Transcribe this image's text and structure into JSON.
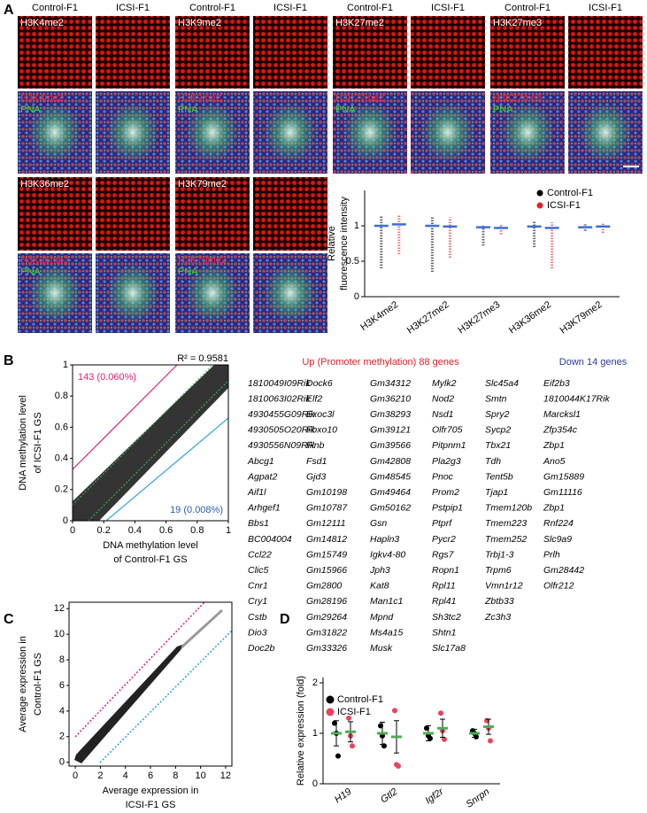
{
  "panels": {
    "a": "A",
    "b": "B",
    "c": "C",
    "d": "D"
  },
  "micrographs": {
    "columns": [
      "Control-F1",
      "ICSI-F1"
    ],
    "stains": [
      "H3K4me2",
      "H3K9me2",
      "H3K27me2",
      "H3K27me3",
      "H3K36me2",
      "H3K79me2"
    ],
    "counterstain": "PNA"
  },
  "gene_lists": {
    "up_title": "Up (Promoter methylation) 88 genes",
    "up": [
      [
        "1810049I09Rik",
        "1810063I02Rik",
        "4930455G09Rik",
        "4930505O20Rik",
        "4930556N09Rik",
        "Abcg1",
        "Agpat2",
        "Aif1l",
        "Arhgef1",
        "Bbs1",
        "BC004004",
        "Ccl22",
        "Clic5",
        "Cnr1",
        "Cry1",
        "Cstb",
        "Dio3",
        "Doc2b"
      ],
      [
        "Dock6",
        "Elf2",
        "Exoc3l",
        "Fbxo10",
        "Flnb",
        "Fsd1",
        "Gjd3",
        "Gm10198",
        "Gm10787",
        "Gm12111",
        "Gm14812",
        "Gm15749",
        "Gm15966",
        "Gm2800",
        "Gm28196",
        "Gm29264",
        "Gm31822",
        "Gm33326"
      ],
      [
        "Gm34312",
        "Gm36210",
        "Gm38293",
        "Gm39121",
        "Gm39566",
        "Gm42808",
        "Gm48545",
        "Gm49464",
        "Gm50162",
        "Gsn",
        "Hapln3",
        "Igkv4-80",
        "Jph3",
        "Kat8",
        "Man1c1",
        "Mpnd",
        "Ms4a15",
        "Musk"
      ],
      [
        "Mylk2",
        "Nod2",
        "Nsd1",
        "Olfr705",
        "Pitpnm1",
        "Pla2g3",
        "Pnoc",
        "Prom2",
        "Pstpip1",
        "Ptprf",
        "Pycr2",
        "Rgs7",
        "Ropn1",
        "Rpl11",
        "Rpl41",
        "Sh3tc2",
        "Shtn1",
        "Slc17a8"
      ],
      [
        "Slc45a4",
        "Smtn",
        "Spry2",
        "Sycp2",
        "Tbx21",
        "Tdh",
        "Tent5b",
        "Tjap1",
        "Tmem120b",
        "Tmem223",
        "Tmem252",
        "Trbj1-3",
        "Trpm6",
        "Vmn1r12",
        "Zbtb33",
        "Zc3h3"
      ]
    ],
    "down_title": "Down 14 genes",
    "down": [
      "Eif2b3",
      "1810044K17Rik",
      "Marcksl1",
      "Zfp354c",
      "Zbp1",
      "Ano5",
      "Gm15889",
      "Gm11116",
      "Zbp1",
      "Rnf224",
      "Slc9a9",
      "Prlh",
      "Gm28442",
      "Olfr212"
    ]
  },
  "chart_data": [
    {
      "type": "dot",
      "y_label": [
        "Relative",
        "fluorescence intensity"
      ],
      "categories": [
        "H3K4me2",
        "H3K27me2",
        "H3K27me3",
        "H3K36me2",
        "H3K79me2"
      ],
      "series": [
        {
          "name": "Control-F1",
          "color": "#000000",
          "values": [
            1.0,
            1.0,
            0.98,
            0.99,
            0.98
          ],
          "min": [
            0.4,
            0.35,
            0.72,
            0.7,
            0.93
          ],
          "max": [
            1.15,
            1.12,
            1.02,
            1.06,
            1.02
          ]
        },
        {
          "name": "ICSI-F1",
          "color": "#e8202a",
          "values": [
            1.02,
            0.99,
            0.97,
            0.97,
            0.99
          ],
          "min": [
            0.6,
            0.55,
            0.88,
            0.4,
            0.9
          ],
          "max": [
            1.15,
            1.12,
            1.02,
            1.05,
            1.03
          ]
        }
      ],
      "mean_color": "#3b6fd8",
      "ylim": [
        0,
        1.5
      ],
      "yticks": [
        0,
        0.5,
        1
      ],
      "legend": "upper right"
    },
    {
      "type": "scatter",
      "x_label": [
        "DNA methylation level",
        "of Control-F1 GS"
      ],
      "y_label": [
        "DNA methylation level",
        "of ICSI-F1 GS"
      ],
      "xlim": [
        0,
        1
      ],
      "ylim": [
        0,
        1
      ],
      "xticks": [
        0,
        0.2,
        0.4,
        0.6,
        0.8,
        1
      ],
      "yticks": [
        0,
        0.2,
        0.4,
        0.6,
        0.8,
        1
      ],
      "annotations": {
        "r2": "R² = 0.9581",
        "up": "143 (0.060%)",
        "down": "19 (0.008%)"
      },
      "colors": {
        "up": "#e0207a",
        "down": "#2a5fb0"
      }
    },
    {
      "type": "scatter",
      "x_label": [
        "Average expression in",
        "ICSI-F1 GS"
      ],
      "y_label": [
        "Average expression in",
        "Control-F1 GS"
      ],
      "xlim": [
        -0.5,
        12.5
      ],
      "ylim": [
        -0.3,
        12.5
      ],
      "xticks": [
        0,
        2,
        4,
        6,
        8,
        10,
        12
      ],
      "yticks": [
        0,
        2,
        4,
        6,
        8,
        10,
        12
      ]
    },
    {
      "type": "dot_error",
      "y_label": "Relative expression (fold)",
      "categories": [
        "H19",
        "Gtl2",
        "Igf2r",
        "Snrpn"
      ],
      "series": [
        {
          "name": "Control-F1",
          "color": "#000000",
          "values": [
            1.0,
            1.0,
            1.0,
            1.0
          ],
          "errors": [
            0.25,
            0.22,
            0.15,
            0.08
          ],
          "points": [
            [
              1.2,
              1.0,
              0.55
            ],
            [
              1.15,
              0.95,
              0.75
            ],
            [
              1.1,
              0.95,
              0.9
            ],
            [
              1.05,
              1.0,
              0.93
            ]
          ]
        },
        {
          "name": "ICSI-F1",
          "color": "#e8445a",
          "values": [
            1.03,
            0.93,
            1.1,
            1.13
          ],
          "errors": [
            0.2,
            0.32,
            0.18,
            0.15
          ],
          "points": [
            [
              1.3,
              0.95,
              0.75
            ],
            [
              1.45,
              0.38,
              0.35
            ],
            [
              1.4,
              1.05,
              0.88
            ],
            [
              1.25,
              1.1,
              0.85
            ]
          ]
        }
      ],
      "mean_color": "#4caf50",
      "ylim": [
        0,
        2
      ],
      "yticks": [
        0,
        1,
        2
      ],
      "legend": "upper left"
    }
  ]
}
